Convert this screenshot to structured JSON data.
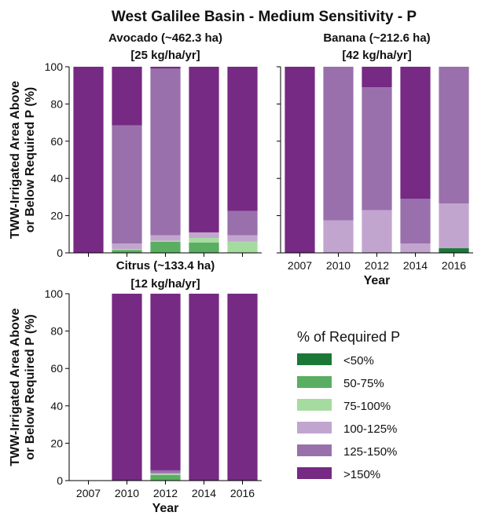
{
  "figure": {
    "title": "West Galilee Basin - Medium Sensitivity - P"
  },
  "chart_data": [
    {
      "type": "bar",
      "stacked": true,
      "title": "Avocado (~462.3 ha)",
      "subtitle": "[25 kg/ha/yr]",
      "ylabel": "TWW-Irrigated Area Above or Below Required P (%)",
      "xlabel": "",
      "ylim": [
        0,
        100
      ],
      "yticks": [
        0,
        20,
        40,
        60,
        80,
        100
      ],
      "categories": [
        "2007",
        "2010",
        "2012",
        "2014",
        "2016"
      ],
      "show_x_tick_labels": false,
      "series": [
        {
          "name": "<50%",
          "values": [
            0,
            0,
            0,
            0,
            0
          ]
        },
        {
          "name": "50-75%",
          "values": [
            0,
            1.5,
            6,
            5.5,
            0
          ]
        },
        {
          "name": "75-100%",
          "values": [
            0,
            0.5,
            0.5,
            2.5,
            6
          ]
        },
        {
          "name": "100-125%",
          "values": [
            0,
            3,
            3,
            3,
            3.5
          ]
        },
        {
          "name": "125-150%",
          "values": [
            0,
            63.5,
            89.5,
            0,
            13
          ]
        },
        {
          "name": ">150%",
          "values": [
            100,
            31.5,
            1,
            89,
            77.5
          ]
        }
      ]
    },
    {
      "type": "bar",
      "stacked": true,
      "title": "Banana (~212.6 ha)",
      "subtitle": "[42 kg/ha/yr]",
      "ylabel": "",
      "xlabel": "Year",
      "ylim": [
        0,
        100
      ],
      "yticks": [
        0,
        20,
        40,
        60,
        80,
        100
      ],
      "show_y_tick_labels": false,
      "categories": [
        "2007",
        "2010",
        "2012",
        "2014",
        "2016"
      ],
      "show_x_tick_labels": true,
      "series": [
        {
          "name": "<50%",
          "values": [
            0,
            0,
            0,
            0,
            2.5
          ]
        },
        {
          "name": "50-75%",
          "values": [
            0,
            0,
            0,
            0,
            0
          ]
        },
        {
          "name": "75-100%",
          "values": [
            0,
            0,
            0,
            0,
            0
          ]
        },
        {
          "name": "100-125%",
          "values": [
            0,
            17.5,
            23,
            5,
            24
          ]
        },
        {
          "name": "125-150%",
          "values": [
            0,
            82.5,
            66,
            24,
            73.5
          ]
        },
        {
          "name": ">150%",
          "values": [
            100,
            0,
            11,
            71,
            0
          ]
        }
      ]
    },
    {
      "type": "bar",
      "stacked": true,
      "title": "Citrus (~133.4 ha)",
      "subtitle": "[12 kg/ha/yr]",
      "ylabel": "TWW-Irrigated Area Above or Below Required P (%)",
      "xlabel": "Year",
      "ylim": [
        0,
        100
      ],
      "yticks": [
        0,
        20,
        40,
        60,
        80,
        100
      ],
      "categories": [
        "2007",
        "2010",
        "2012",
        "2014",
        "2016"
      ],
      "show_x_tick_labels": true,
      "series": [
        {
          "name": "<50%",
          "values": [
            0,
            0,
            0,
            0,
            0
          ]
        },
        {
          "name": "50-75%",
          "values": [
            0,
            0,
            3,
            0,
            0
          ]
        },
        {
          "name": "75-100%",
          "values": [
            0,
            0,
            0.5,
            0,
            0
          ]
        },
        {
          "name": "100-125%",
          "values": [
            0,
            0,
            0.5,
            0,
            0
          ]
        },
        {
          "name": "125-150%",
          "values": [
            0,
            0,
            1.5,
            0,
            0
          ]
        },
        {
          "name": ">150%",
          "values": [
            0,
            100,
            94.5,
            100,
            100
          ]
        }
      ]
    }
  ],
  "legend": {
    "title": "% of Required P",
    "placement": "lower-right",
    "items": [
      {
        "label": "<50%",
        "color": "#1b7837"
      },
      {
        "label": "50-75%",
        "color": "#5aae61"
      },
      {
        "label": "75-100%",
        "color": "#a6dba0"
      },
      {
        "label": "100-125%",
        "color": "#c2a5cf"
      },
      {
        "label": "125-150%",
        "color": "#9970ab"
      },
      {
        "label": ">150%",
        "color": "#762a83"
      }
    ]
  }
}
